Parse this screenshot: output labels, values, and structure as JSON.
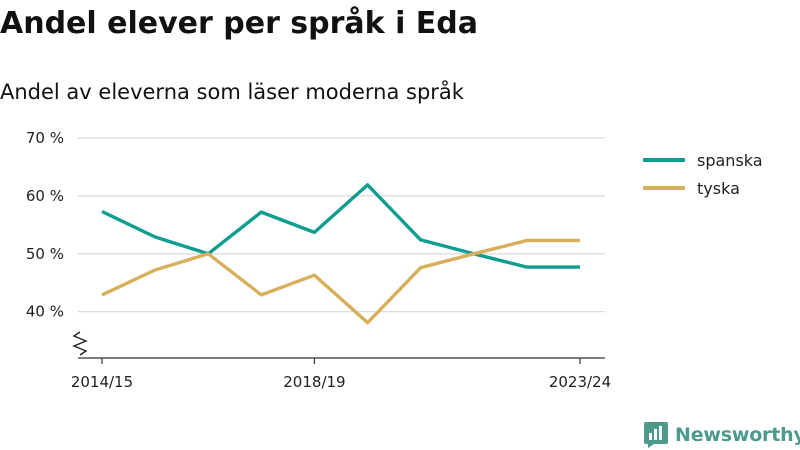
{
  "header": {
    "title": "Andel elever per språk i Eda",
    "subtitle": "Andel av eleverna som läser moderna språk"
  },
  "brand": {
    "name": "Newsworthy",
    "color": "#4c9a8e",
    "icon": "newsworthy-logo-icon"
  },
  "chart_data": {
    "type": "line",
    "title": "Andel elever per språk i Eda",
    "subtitle": "Andel av eleverna som läser moderna språk",
    "xlabel": "",
    "ylabel": "",
    "x": [
      "2014/15",
      "2015/16",
      "2016/17",
      "2017/18",
      "2018/19",
      "2019/20",
      "2020/21",
      "2021/22",
      "2022/23",
      "2023/24"
    ],
    "x_tick_labels": [
      "2014/15",
      "2018/19",
      "2023/24"
    ],
    "ylim": [
      32,
      70
    ],
    "y_ticks": [
      40,
      50,
      60,
      70
    ],
    "y_tick_labels": [
      "40 %",
      "50 %",
      "60 %",
      "70 %"
    ],
    "y_axis_break": true,
    "grid": true,
    "legend_position": "right",
    "series": [
      {
        "name": "spanska",
        "color": "#0d9e91",
        "values": [
          57.3,
          52.9,
          50.0,
          57.2,
          53.7,
          61.9,
          52.4,
          50.0,
          47.7,
          47.7
        ]
      },
      {
        "name": "tyska",
        "color": "#d8b05c",
        "values": [
          42.9,
          47.2,
          50.0,
          42.9,
          46.3,
          38.1,
          47.6,
          50.0,
          52.3,
          52.3
        ]
      }
    ]
  }
}
